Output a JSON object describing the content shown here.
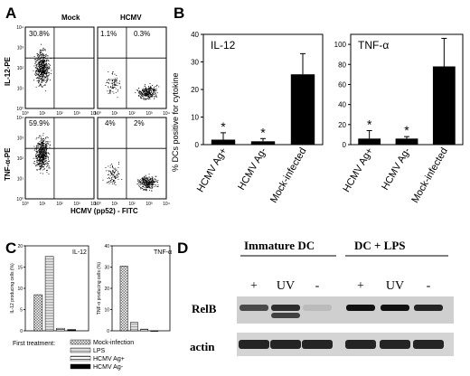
{
  "panels": {
    "A": {
      "letter": "A",
      "col_mock": "Mock",
      "col_hcmv": "HCMV",
      "row1_ylabel": "IL-12-PE",
      "row2_ylabel": "TNF-α-PE",
      "xlabel": "HCMV (pp52) - FITC",
      "tick_labels": [
        "10⁰",
        "10¹",
        "10²",
        "10³",
        "10⁴"
      ],
      "quadrants": {
        "mock_il12": "30.8%",
        "hcmv_il12_left": "1.1%",
        "hcmv_il12_right": "0.3%",
        "mock_tnf": "59.9%",
        "hcmv_tnf_left": "4%",
        "hcmv_tnf_right": "2%"
      }
    },
    "B": {
      "letter": "B"
    },
    "C": {
      "letter": "C",
      "legend_title": "First treatment:",
      "legend": [
        "Mock-infection",
        "LPS",
        "HCMV Ag+",
        "HCMV Ag-"
      ]
    },
    "D": {
      "letter": "D",
      "group1": "Immature DC",
      "group2": "DC + LPS",
      "lanes": [
        "+",
        "UV",
        "-",
        "+",
        "UV",
        "-"
      ],
      "row_relb": "RelB",
      "row_actin": "actin"
    }
  },
  "chart_data": [
    {
      "panel": "B",
      "type": "bar",
      "title": "IL-12",
      "ylabel": "% DCs positive for cytokine",
      "categories": [
        "HCMV Ag+",
        "HCMV Ag-",
        "Mock-infected"
      ],
      "values": [
        1.8,
        1.2,
        25.5
      ],
      "error": [
        2.5,
        1.0,
        7.5
      ],
      "significance": [
        "*",
        "*",
        ""
      ],
      "ylim": [
        0,
        40
      ],
      "yticks": [
        0,
        10,
        20,
        30,
        40
      ],
      "color": "#000000"
    },
    {
      "panel": "B",
      "type": "bar",
      "title": "TNF-α",
      "categories": [
        "HCMV Ag+",
        "HCMV Ag-",
        "Mock-infected"
      ],
      "values": [
        6,
        6,
        78
      ],
      "error": [
        8,
        2,
        28
      ],
      "significance": [
        "*",
        "*",
        ""
      ],
      "ylim": [
        0,
        110
      ],
      "yticks": [
        0,
        20,
        40,
        60,
        80,
        100
      ],
      "color": "#000000"
    },
    {
      "panel": "C",
      "type": "bar",
      "title": "IL-12",
      "ylabel": "IL-12 producing cells (%)",
      "series": [
        {
          "name": "Mock-infection",
          "values": [
            8.5
          ]
        },
        {
          "name": "LPS",
          "values": [
            17.5
          ]
        },
        {
          "name": "HCMV Ag+",
          "values": [
            0.6
          ]
        },
        {
          "name": "HCMV Ag-",
          "values": [
            0.3
          ]
        }
      ],
      "ylim": [
        0,
        20
      ],
      "yticks": [
        0,
        5,
        10,
        15,
        20
      ]
    },
    {
      "panel": "C",
      "type": "bar",
      "title": "TNF-α",
      "ylabel": "TNF-α producing cells (%)",
      "series": [
        {
          "name": "Mock-infection",
          "values": [
            30.5
          ]
        },
        {
          "name": "LPS",
          "values": [
            4.0
          ]
        },
        {
          "name": "HCMV Ag+",
          "values": [
            0.8
          ]
        },
        {
          "name": "HCMV Ag-",
          "values": [
            0
          ]
        }
      ],
      "ylim": [
        0,
        40
      ],
      "yticks": [
        0,
        10,
        20,
        30,
        40
      ]
    }
  ]
}
